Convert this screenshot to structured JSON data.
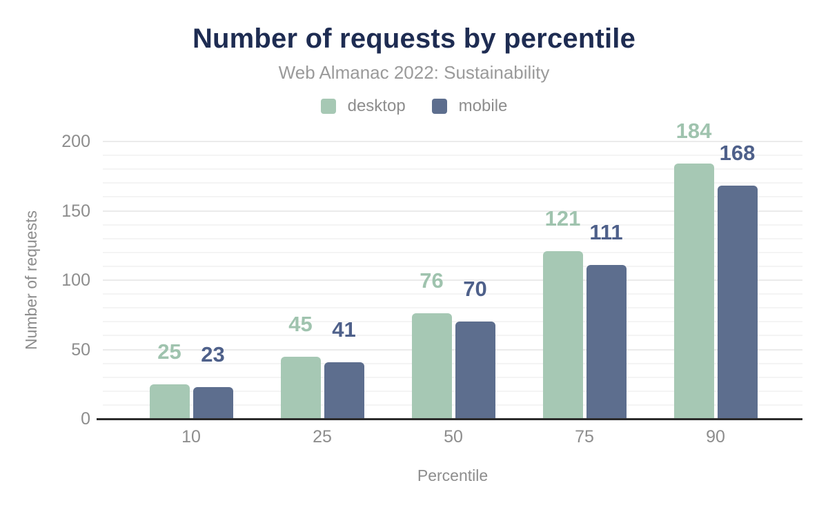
{
  "chart_data": {
    "type": "bar",
    "title": "Number of requests by percentile",
    "subtitle": "Web Almanac 2022: Sustainability",
    "xlabel": "Percentile",
    "ylabel": "Number of requests",
    "categories": [
      "10",
      "25",
      "50",
      "75",
      "90"
    ],
    "series": [
      {
        "name": "desktop",
        "color": "#a6c8b4",
        "label_color": "#9fc3ae",
        "values": [
          25,
          45,
          76,
          121,
          184
        ]
      },
      {
        "name": "mobile",
        "color": "#5d6e8e",
        "label_color": "#4e608a",
        "values": [
          23,
          41,
          70,
          111,
          168
        ]
      }
    ],
    "ylim": [
      0,
      200
    ],
    "y_ticks": [
      0,
      50,
      100,
      150,
      200
    ],
    "grid": {
      "orientation": "horizontal",
      "minor_step": 10,
      "major_step": 50
    },
    "legend_position": "top",
    "data_labels": true,
    "title_color": "#1e2c52",
    "subtitle_color": "#9a9a9a",
    "axis_text_color": "#8d8d8d",
    "axis_line_color": "#2b2b2b"
  }
}
